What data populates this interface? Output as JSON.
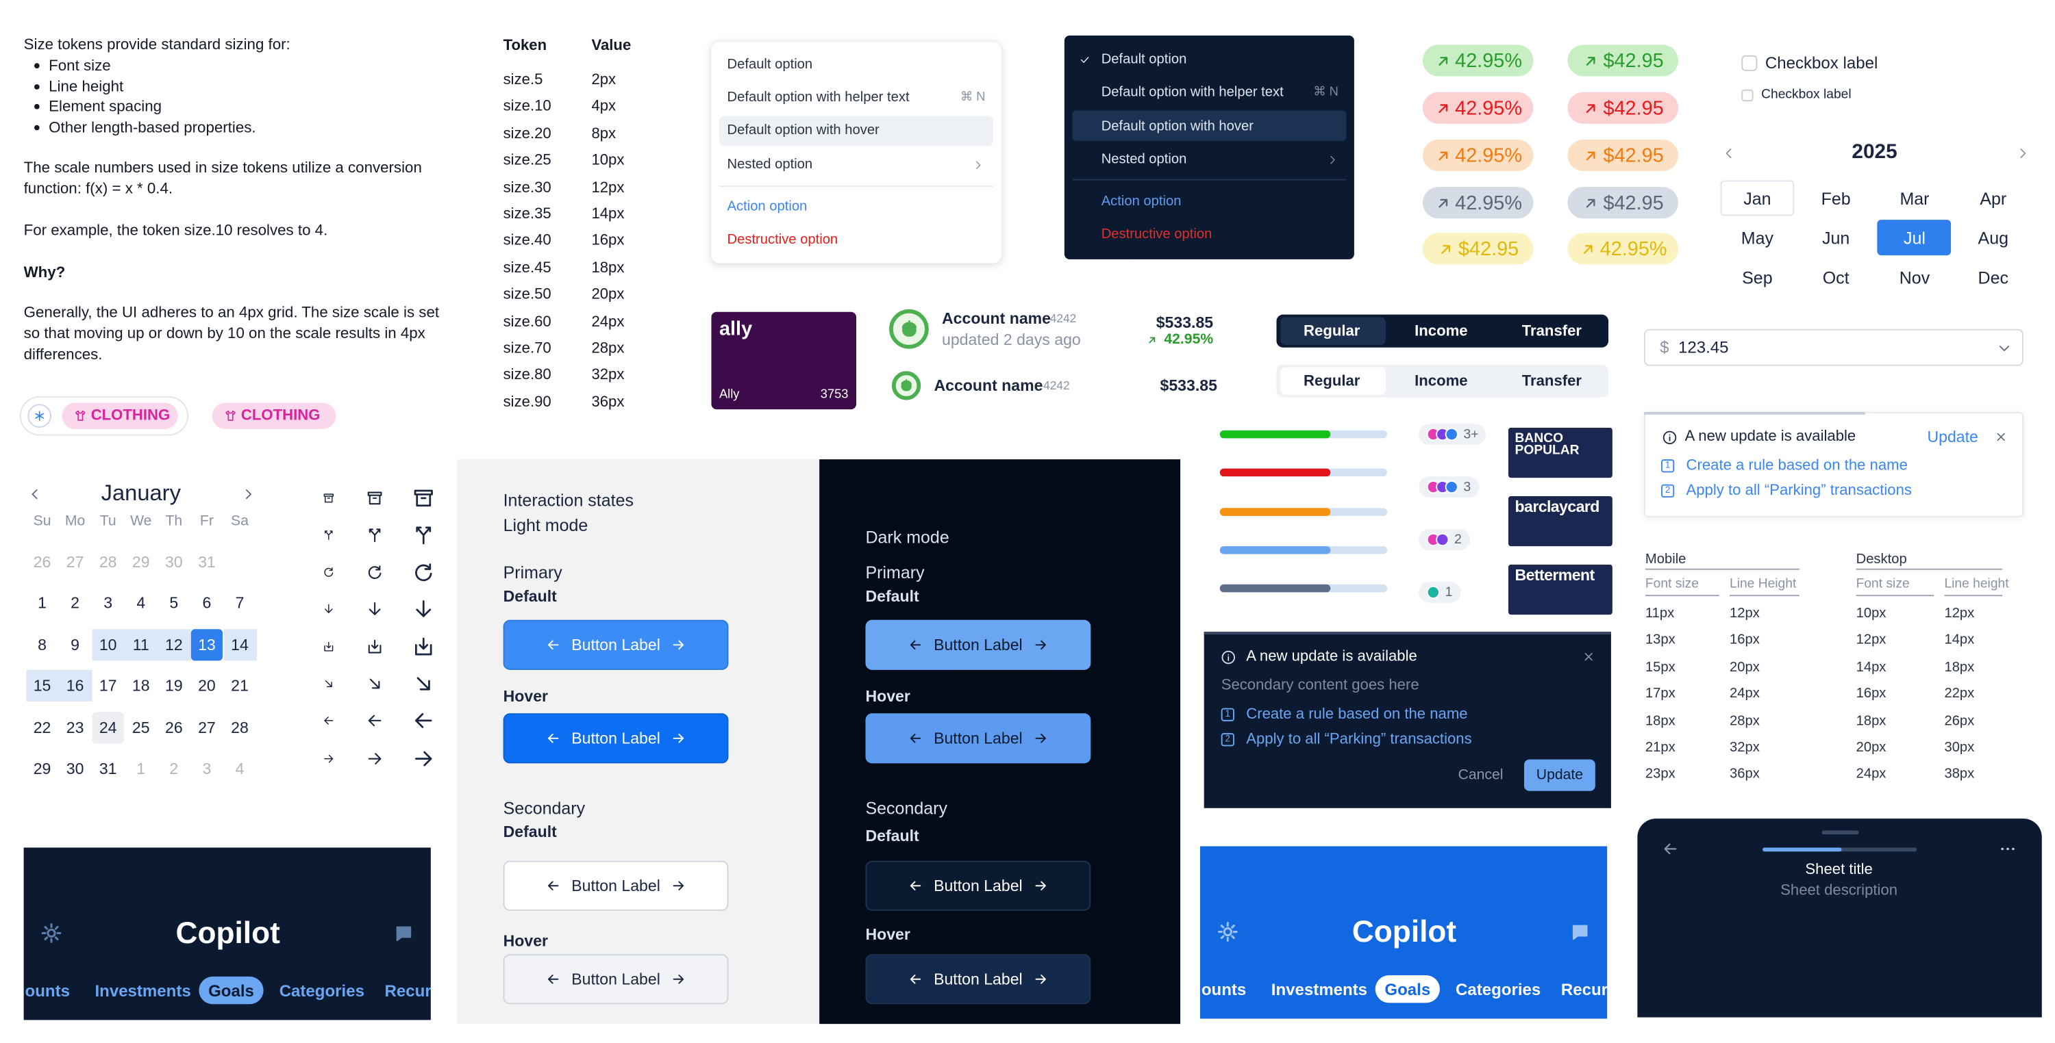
{
  "size_tokens": {
    "intro": "Size tokens provide standard sizing for:",
    "bullets": [
      "Font size",
      "Line height",
      "Element spacing",
      "Other length-based properties."
    ],
    "scale_note": "The scale numbers used in size tokens utilize a conversion function: f(x) = x * 0.4.",
    "example": "For example, the token size.10 resolves to 4.",
    "why_heading": "Why?",
    "why_text": "Generally, the UI adheres to an 4px grid. The size scale is set so that moving up or down by 10 on the scale results in 4px differences.",
    "table": {
      "headers": [
        "Token",
        "Value"
      ],
      "rows": [
        [
          "size.5",
          "2px"
        ],
        [
          "size.10",
          "4px"
        ],
        [
          "size.20",
          "8px"
        ],
        [
          "size.25",
          "10px"
        ],
        [
          "size.30",
          "12px"
        ],
        [
          "size.35",
          "14px"
        ],
        [
          "size.40",
          "16px"
        ],
        [
          "size.45",
          "18px"
        ],
        [
          "size.50",
          "20px"
        ],
        [
          "size.60",
          "24px"
        ],
        [
          "size.70",
          "28px"
        ],
        [
          "size.80",
          "32px"
        ],
        [
          "size.90",
          "36px"
        ]
      ]
    }
  },
  "chips": [
    "CLOTHING",
    "CLOTHING"
  ],
  "menu_light": {
    "items": [
      {
        "label": "Default option"
      },
      {
        "label": "Default option with helper text",
        "shortcut": "⌘ N"
      },
      {
        "label": "Default option with hover"
      },
      {
        "label": "Nested option"
      },
      {
        "label": "Action option"
      },
      {
        "label": "Destructive option"
      }
    ]
  },
  "menu_dark": {
    "items": [
      {
        "label": "Default option"
      },
      {
        "label": "Default option with helper text",
        "shortcut": "⌘ N"
      },
      {
        "label": "Default option with hover"
      },
      {
        "label": "Nested option"
      },
      {
        "label": "Action option"
      },
      {
        "label": "Destructive option"
      }
    ]
  },
  "badges": [
    [
      "42.95%",
      "42.95%",
      "42.95%",
      "42.95%",
      "$42.95"
    ],
    [
      "$42.95",
      "$42.95",
      "$42.95",
      "$42.95",
      "42.95%"
    ]
  ],
  "checkboxes": [
    "Checkbox label",
    "Checkbox label"
  ],
  "month_picker": {
    "year": "2025",
    "months": [
      "Jan",
      "Feb",
      "Mar",
      "Apr",
      "May",
      "Jun",
      "Jul",
      "Aug",
      "Sep",
      "Oct",
      "Nov",
      "Dec"
    ],
    "selected": 6,
    "outlined": 0
  },
  "ally_card": {
    "brand": "ally",
    "name": "Ally",
    "number": "3753"
  },
  "accounts": [
    {
      "name": "Account name",
      "mask": "4242",
      "subtitle": "updated 2 days ago",
      "balance": "$533.85",
      "change": "42.95%"
    },
    {
      "name": "Account name",
      "mask": "4242",
      "balance": "$533.85"
    }
  ],
  "segmented": [
    [
      "Regular",
      "Income",
      "Transfer"
    ],
    [
      "Regular",
      "Income",
      "Transfer"
    ]
  ],
  "select": {
    "currency": "$",
    "value": "123.45"
  },
  "notice_light": {
    "title": "A new update is available",
    "action": "Update",
    "steps": [
      {
        "num": "1",
        "text": "Create a rule based on the name"
      },
      {
        "num": "2",
        "text": "Apply to all “Parking” transactions"
      }
    ]
  },
  "progress": [
    66,
    66,
    66,
    66,
    66
  ],
  "avatar_groups": [
    "3+",
    "3",
    "2",
    "1"
  ],
  "banks": [
    "BANCO POPULAR",
    "barclaycard",
    "Betterment"
  ],
  "type_scale": {
    "mobile": {
      "title": "Mobile",
      "headers": [
        "Font size",
        "Line Height"
      ],
      "rows": [
        [
          "11px",
          "12px"
        ],
        [
          "13px",
          "16px"
        ],
        [
          "15px",
          "20px"
        ],
        [
          "17px",
          "24px"
        ],
        [
          "18px",
          "28px"
        ],
        [
          "21px",
          "32px"
        ],
        [
          "23px",
          "36px"
        ]
      ]
    },
    "desktop": {
      "title": "Desktop",
      "headers": [
        "Font size",
        "Line height"
      ],
      "rows": [
        [
          "10px",
          "12px"
        ],
        [
          "12px",
          "14px"
        ],
        [
          "14px",
          "18px"
        ],
        [
          "16px",
          "22px"
        ],
        [
          "18px",
          "26px"
        ],
        [
          "20px",
          "30px"
        ],
        [
          "24px",
          "38px"
        ]
      ]
    }
  },
  "calendar": {
    "month": "January",
    "weekdays": [
      "Su",
      "Mo",
      "Tu",
      "We",
      "Th",
      "Fr",
      "Sa"
    ],
    "weeks": [
      [
        {
          "day": "26",
          "state": "outside"
        },
        {
          "day": "27",
          "state": "outside"
        },
        {
          "day": "28",
          "state": "outside"
        },
        {
          "day": "29",
          "state": "outside"
        },
        {
          "day": "30",
          "state": "outside"
        },
        {
          "day": "31",
          "state": "outside"
        }
      ],
      [
        "1",
        "2",
        "3",
        "4",
        "5",
        "6",
        "7"
      ],
      [
        "8",
        "9",
        {
          "day": "10",
          "state": "range"
        },
        {
          "day": "11",
          "state": "range"
        },
        {
          "day": "12",
          "state": "range"
        },
        {
          "day": "13",
          "state": "selected"
        },
        {
          "day": "14",
          "state": "range"
        }
      ],
      [
        {
          "day": "15",
          "state": "range"
        },
        {
          "day": "16",
          "state": "range"
        },
        "17",
        "18",
        "19",
        "20",
        "21"
      ],
      [
        "22",
        "23",
        {
          "day": "24",
          "state": "today"
        },
        "25",
        "26",
        "27",
        "28"
      ],
      [
        "29",
        "30",
        "31",
        {
          "day": "1",
          "state": "outside"
        },
        {
          "day": "2",
          "state": "outside"
        },
        {
          "day": "3",
          "state": "outside"
        },
        {
          "day": "4",
          "state": "outside"
        }
      ]
    ]
  },
  "interaction": {
    "light": {
      "title": "Interaction states",
      "mode": "Light mode",
      "sections": [
        {
          "title": "Primary",
          "states": [
            {
              "state": "Default",
              "button": "Button Label"
            },
            {
              "state": "Hover",
              "button": "Button Label"
            }
          ]
        },
        {
          "title": "Secondary",
          "states": [
            {
              "state": "Default",
              "button": "Button Label"
            },
            {
              "state": "Hover",
              "button": "Button Label"
            }
          ]
        }
      ]
    },
    "dark": {
      "mode": "Dark mode",
      "sections": [
        {
          "title": "Primary",
          "states": [
            {
              "state": "Default",
              "button": "Button Label"
            },
            {
              "state": "Hover",
              "button": "Button Label"
            }
          ]
        },
        {
          "title": "Secondary",
          "states": [
            {
              "state": "Default",
              "button": "Button Label"
            },
            {
              "state": "Hover",
              "button": "Button Label"
            }
          ]
        }
      ]
    }
  },
  "notice_dark": {
    "title": "A new update is available",
    "secondary": "Secondary content goes here",
    "steps": [
      {
        "num": "1",
        "text": "Create a rule based on the name"
      },
      {
        "num": "2",
        "text": "Apply to all “Parking” transactions"
      }
    ],
    "cancel": "Cancel",
    "action": "Update"
  },
  "copilot": [
    {
      "title": "Copilot",
      "tabs": [
        "ounts",
        "Investments",
        "Goals",
        "Categories",
        "Recur"
      ],
      "active": 2
    },
    {
      "title": "Copilot",
      "tabs": [
        "ounts",
        "Investments",
        "Goals",
        "Categories",
        "Recur"
      ],
      "active": 2
    }
  ],
  "sheet": {
    "title": "Sheet title",
    "description": "Sheet description"
  }
}
